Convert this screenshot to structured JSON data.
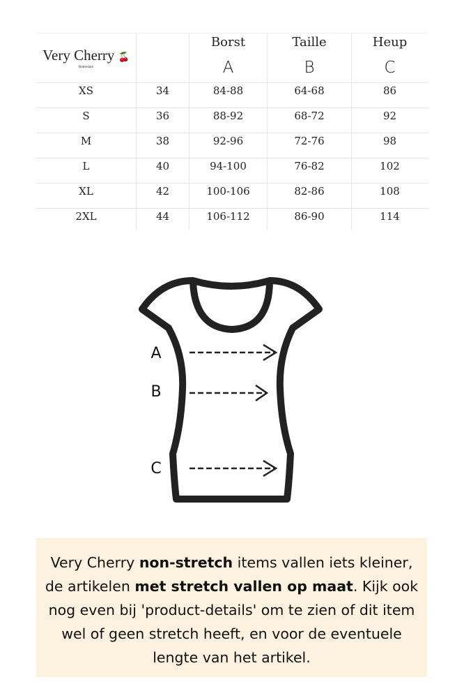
{
  "logo": {
    "name": "Very Cherry",
    "sub": "Rotterdam"
  },
  "table": {
    "headers": [
      {
        "name": "Borst",
        "letter": "A"
      },
      {
        "name": "Taille",
        "letter": "B"
      },
      {
        "name": "Heup",
        "letter": "C"
      }
    ],
    "rows": [
      [
        "XS",
        "34",
        "84-88",
        "64-68",
        "86"
      ],
      [
        "S",
        "36",
        "88-92",
        "68-72",
        "92"
      ],
      [
        "M",
        "38",
        "92-96",
        "72-76",
        "98"
      ],
      [
        "L",
        "40",
        "94-100",
        "76-82",
        "102"
      ],
      [
        "XL",
        "42",
        "100-106",
        "82-86",
        "108"
      ],
      [
        "2XL",
        "44",
        "106-112",
        "86-90",
        "114"
      ]
    ]
  },
  "diagram": {
    "labels": [
      "A",
      "B",
      "C"
    ]
  },
  "note": {
    "segments": [
      {
        "text": "Very Cherry ",
        "bold": false
      },
      {
        "text": "non-stretch",
        "bold": true
      },
      {
        "text": " items vallen iets kleiner, de artikelen ",
        "bold": false
      },
      {
        "text": "met stretch vallen op maat",
        "bold": true
      },
      {
        "text": ". Kijk ook nog even bij 'product-details' om te zien of dit item wel of geen stretch heeft, en voor de eventuele lengte van het artikel.",
        "bold": false
      }
    ]
  },
  "colors": {
    "note_bg": "#fdf1df",
    "outline": "#222222",
    "cherry": "#8b1a1a"
  }
}
